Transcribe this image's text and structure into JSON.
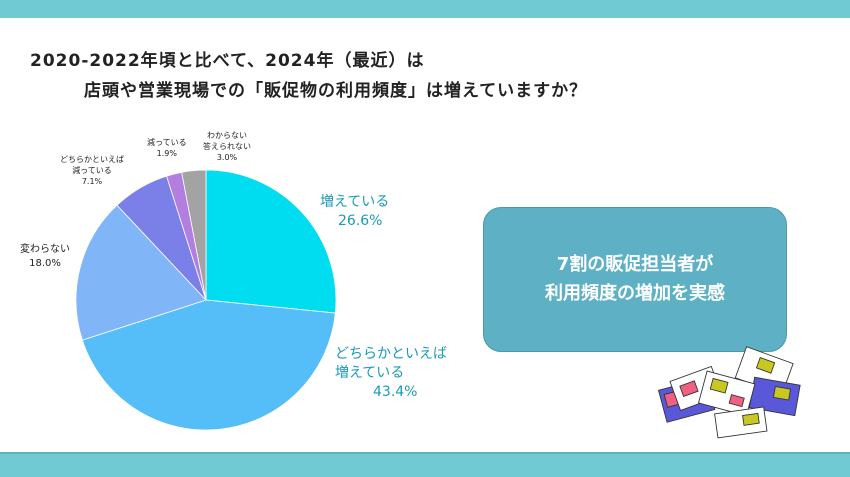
{
  "title": {
    "line1": "2020-2022年頃と比べて、2024年（最近）は",
    "line2": "店頭や営業現場での「販促物の利用頻度」は増えていますか？"
  },
  "chart_data": {
    "type": "pie",
    "title": "2020-2022年頃と比べて、2024年（最近）は店頭や営業現場での「販促物の利用頻度」は増えていますか？",
    "slices": [
      {
        "label": "増えている",
        "value": 26.6,
        "value_label": "26.6%",
        "color": "#00dcf0"
      },
      {
        "label": "どちらかといえば増えている",
        "value": 43.4,
        "value_label": "43.4%",
        "color": "#55bdf7"
      },
      {
        "label": "変わらない",
        "value": 18.0,
        "value_label": "18.0%",
        "color": "#80b6f8"
      },
      {
        "label": "どちらかといえば減っている",
        "value": 7.1,
        "value_label": "7.1%",
        "color": "#7b80e8"
      },
      {
        "label": "減っている",
        "value": 1.9,
        "value_label": "1.9%",
        "color": "#b27fe0"
      },
      {
        "label": "わからない答えられない",
        "value": 3.0,
        "value_label": "3.0%",
        "color": "#a3a3a3"
      }
    ],
    "label_lines": {
      "s0": [
        "増えている"
      ],
      "s1": [
        "どちらかといえば",
        "増えている"
      ],
      "s2": [
        "変わらない"
      ],
      "s3": [
        "どちらかといえば",
        "減っている"
      ],
      "s4": [
        "減っている"
      ],
      "s5": [
        "わからない",
        "答えられない"
      ]
    }
  },
  "callout": {
    "line1": "7割の販促担当者が",
    "line2": "利用頻度の増加を実感"
  }
}
